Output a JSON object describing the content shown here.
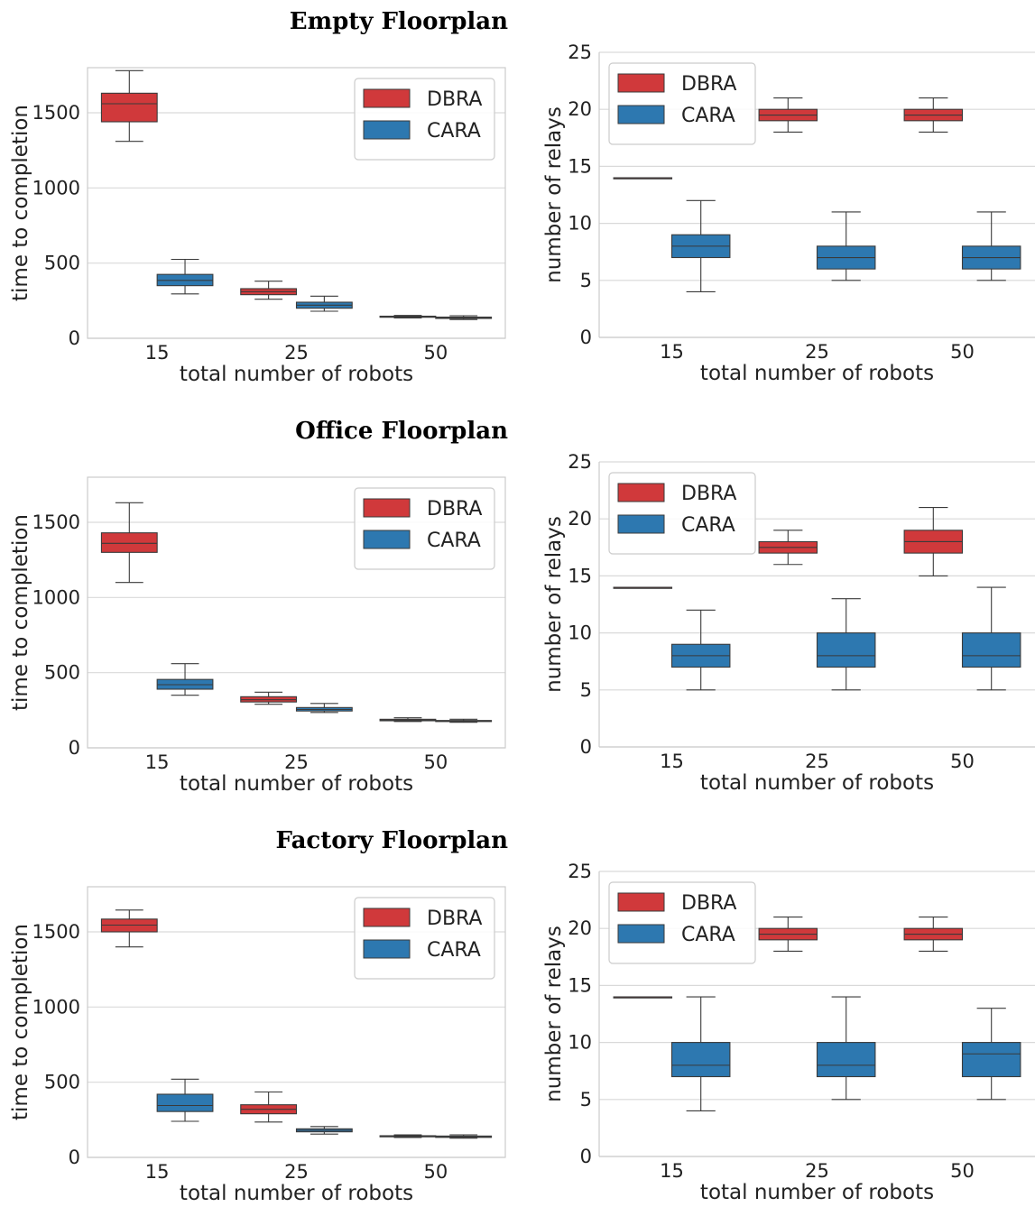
{
  "colors": {
    "DBRA": "#d0393b",
    "CARA": "#2d78b0",
    "grid": "#d9d9d9",
    "frame": "#cccccc",
    "whisker": "#3a3a3a"
  },
  "chart_data": [
    {
      "row_title": "Empty Floorplan",
      "type": "box",
      "xlabel": "total number of robots",
      "ylabel": "time to completion",
      "categories": [
        "15",
        "25",
        "50"
      ],
      "ylim": [
        0,
        1800
      ],
      "yticks": [
        0,
        500,
        1000,
        1500
      ],
      "legend": {
        "position": "top-right",
        "entries": [
          "DBRA",
          "CARA"
        ]
      },
      "series": [
        {
          "name": "DBRA",
          "boxes": [
            {
              "whislo": 1310,
              "q1": 1440,
              "med": 1560,
              "q3": 1630,
              "whishi": 1780
            },
            {
              "whislo": 260,
              "q1": 290,
              "med": 310,
              "q3": 330,
              "whishi": 380
            },
            {
              "whislo": 135,
              "q1": 140,
              "med": 143,
              "q3": 147,
              "whishi": 152
            }
          ]
        },
        {
          "name": "CARA",
          "boxes": [
            {
              "whislo": 295,
              "q1": 350,
              "med": 385,
              "q3": 425,
              "whishi": 525
            },
            {
              "whislo": 180,
              "q1": 200,
              "med": 220,
              "q3": 240,
              "whishi": 280
            },
            {
              "whislo": 125,
              "q1": 132,
              "med": 137,
              "q3": 141,
              "whishi": 150
            }
          ]
        }
      ]
    },
    {
      "type": "box",
      "xlabel": "total number of robots",
      "ylabel": "number of relays",
      "categories": [
        "15",
        "25",
        "50"
      ],
      "ylim": [
        0,
        25
      ],
      "yticks": [
        0,
        5,
        10,
        15,
        20,
        25
      ],
      "legend": {
        "position": "top-left",
        "entries": [
          "DBRA",
          "CARA"
        ]
      },
      "series": [
        {
          "name": "DBRA",
          "boxes": [
            {
              "whislo": 14,
              "q1": 14,
              "med": 14,
              "q3": 14,
              "whishi": 14
            },
            {
              "whislo": 18,
              "q1": 19,
              "med": 19.5,
              "q3": 20,
              "whishi": 21
            },
            {
              "whislo": 18,
              "q1": 19,
              "med": 19.5,
              "q3": 20,
              "whishi": 21
            }
          ]
        },
        {
          "name": "CARA",
          "boxes": [
            {
              "whislo": 4,
              "q1": 7,
              "med": 8,
              "q3": 9,
              "whishi": 12
            },
            {
              "whislo": 5,
              "q1": 6,
              "med": 7,
              "q3": 8,
              "whishi": 11
            },
            {
              "whislo": 5,
              "q1": 6,
              "med": 7,
              "q3": 8,
              "whishi": 11
            }
          ]
        }
      ]
    },
    {
      "row_title": "Office Floorplan",
      "type": "box",
      "xlabel": "total number of robots",
      "ylabel": "time to completion",
      "categories": [
        "15",
        "25",
        "50"
      ],
      "ylim": [
        0,
        1800
      ],
      "yticks": [
        0,
        500,
        1000,
        1500
      ],
      "legend": {
        "position": "top-right",
        "entries": [
          "DBRA",
          "CARA"
        ]
      },
      "series": [
        {
          "name": "DBRA",
          "boxes": [
            {
              "whislo": 1100,
              "q1": 1300,
              "med": 1360,
              "q3": 1430,
              "whishi": 1630
            },
            {
              "whislo": 290,
              "q1": 305,
              "med": 320,
              "q3": 340,
              "whishi": 370
            },
            {
              "whislo": 175,
              "q1": 180,
              "med": 185,
              "q3": 190,
              "whishi": 200
            }
          ]
        },
        {
          "name": "CARA",
          "boxes": [
            {
              "whislo": 350,
              "q1": 390,
              "med": 420,
              "q3": 455,
              "whishi": 560
            },
            {
              "whislo": 235,
              "q1": 245,
              "med": 255,
              "q3": 268,
              "whishi": 295
            },
            {
              "whislo": 170,
              "q1": 175,
              "med": 178,
              "q3": 182,
              "whishi": 190
            }
          ]
        }
      ]
    },
    {
      "type": "box",
      "xlabel": "total number of robots",
      "ylabel": "number of relays",
      "categories": [
        "15",
        "25",
        "50"
      ],
      "ylim": [
        0,
        25
      ],
      "yticks": [
        0,
        5,
        10,
        15,
        20,
        25
      ],
      "legend": {
        "position": "top-left",
        "entries": [
          "DBRA",
          "CARA"
        ]
      },
      "series": [
        {
          "name": "DBRA",
          "boxes": [
            {
              "whislo": 14,
              "q1": 14,
              "med": 14,
              "q3": 14,
              "whishi": 14
            },
            {
              "whislo": 16,
              "q1": 17,
              "med": 17.5,
              "q3": 18,
              "whishi": 19
            },
            {
              "whislo": 15,
              "q1": 17,
              "med": 18,
              "q3": 19,
              "whishi": 21
            }
          ]
        },
        {
          "name": "CARA",
          "boxes": [
            {
              "whislo": 5,
              "q1": 7,
              "med": 8,
              "q3": 9,
              "whishi": 12
            },
            {
              "whislo": 5,
              "q1": 7,
              "med": 8,
              "q3": 10,
              "whishi": 13
            },
            {
              "whislo": 5,
              "q1": 7,
              "med": 8,
              "q3": 10,
              "whishi": 14
            }
          ]
        }
      ]
    },
    {
      "row_title": "Factory Floorplan",
      "type": "box",
      "xlabel": "total number of robots",
      "ylabel": "time to completion",
      "categories": [
        "15",
        "25",
        "50"
      ],
      "ylim": [
        0,
        1800
      ],
      "yticks": [
        0,
        500,
        1000,
        1500
      ],
      "legend": {
        "position": "top-right",
        "entries": [
          "DBRA",
          "CARA"
        ]
      },
      "series": [
        {
          "name": "DBRA",
          "boxes": [
            {
              "whislo": 1400,
              "q1": 1500,
              "med": 1545,
              "q3": 1585,
              "whishi": 1645
            },
            {
              "whislo": 235,
              "q1": 290,
              "med": 320,
              "q3": 350,
              "whishi": 435
            },
            {
              "whislo": 132,
              "q1": 137,
              "med": 140,
              "q3": 144,
              "whishi": 150
            }
          ]
        },
        {
          "name": "CARA",
          "boxes": [
            {
              "whislo": 240,
              "q1": 305,
              "med": 345,
              "q3": 420,
              "whishi": 520
            },
            {
              "whislo": 155,
              "q1": 170,
              "med": 180,
              "q3": 190,
              "whishi": 205
            },
            {
              "whislo": 128,
              "q1": 133,
              "med": 137,
              "q3": 142,
              "whishi": 150
            }
          ]
        }
      ]
    },
    {
      "type": "box",
      "xlabel": "total number of robots",
      "ylabel": "number of relays",
      "categories": [
        "15",
        "25",
        "50"
      ],
      "ylim": [
        0,
        25
      ],
      "yticks": [
        0,
        5,
        10,
        15,
        20,
        25
      ],
      "legend": {
        "position": "top-left",
        "entries": [
          "DBRA",
          "CARA"
        ]
      },
      "series": [
        {
          "name": "DBRA",
          "boxes": [
            {
              "whislo": 14,
              "q1": 14,
              "med": 14,
              "q3": 14,
              "whishi": 14
            },
            {
              "whislo": 18,
              "q1": 19,
              "med": 19.5,
              "q3": 20,
              "whishi": 21
            },
            {
              "whislo": 18,
              "q1": 19,
              "med": 19.5,
              "q3": 20,
              "whishi": 21
            }
          ]
        },
        {
          "name": "CARA",
          "boxes": [
            {
              "whislo": 4,
              "q1": 7,
              "med": 8,
              "q3": 10,
              "whishi": 14
            },
            {
              "whislo": 5,
              "q1": 7,
              "med": 8,
              "q3": 10,
              "whishi": 14
            },
            {
              "whislo": 5,
              "q1": 7,
              "med": 9,
              "q3": 10,
              "whishi": 13
            }
          ]
        }
      ]
    }
  ]
}
